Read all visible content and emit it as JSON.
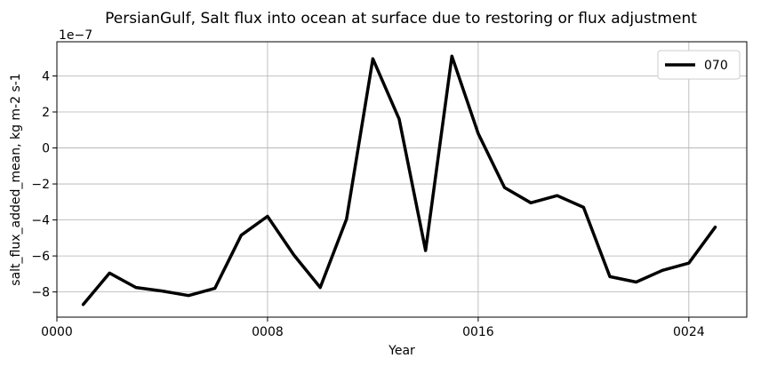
{
  "chart_data": {
    "type": "line",
    "title": "PersianGulf, Salt flux into ocean at surface due to restoring or flux adjustment",
    "xlabel": "Year",
    "ylabel": "salt_flux_added_mean, kg m-2 s-1",
    "y_offset_label": "1e−7",
    "xlim": [
      0,
      26.2
    ],
    "ylim": [
      -9.4,
      5.9
    ],
    "x_ticks": [
      {
        "value": 0,
        "label": "0000"
      },
      {
        "value": 8,
        "label": "0008"
      },
      {
        "value": 16,
        "label": "0016"
      },
      {
        "value": 24,
        "label": "0024"
      }
    ],
    "y_ticks": [
      {
        "value": -8,
        "label": "−8"
      },
      {
        "value": -6,
        "label": "−6"
      },
      {
        "value": -4,
        "label": "−4"
      },
      {
        "value": -2,
        "label": "−2"
      },
      {
        "value": 0,
        "label": "0"
      },
      {
        "value": 2,
        "label": "2"
      },
      {
        "value": 4,
        "label": "4"
      }
    ],
    "grid": true,
    "legend_position": "top-right",
    "series": [
      {
        "name": "070",
        "color": "#000000",
        "x": [
          1,
          2,
          3,
          4,
          5,
          6,
          7,
          8,
          9,
          10,
          11,
          12,
          13,
          14,
          15,
          16,
          17,
          18,
          19,
          20,
          21,
          22,
          23,
          24,
          25
        ],
        "values": [
          -8.7,
          -6.95,
          -7.75,
          -7.95,
          -8.2,
          -7.8,
          -4.85,
          -3.8,
          -5.95,
          -7.75,
          -3.95,
          4.95,
          1.6,
          -5.7,
          5.1,
          0.8,
          -2.2,
          -3.05,
          -2.65,
          -3.3,
          -7.15,
          -7.45,
          -6.8,
          -6.4,
          -4.4
        ]
      }
    ]
  }
}
